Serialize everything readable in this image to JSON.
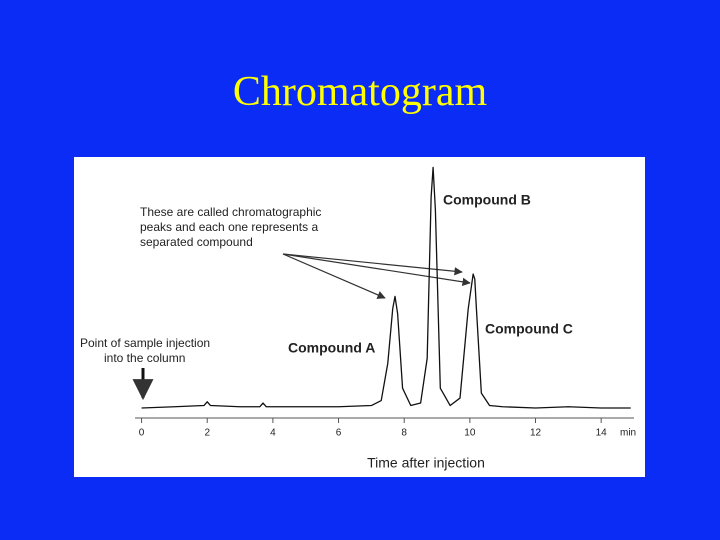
{
  "title": "Chromatogram",
  "chart_data": {
    "type": "line",
    "xlabel": "Time after injection",
    "x_unit": "min",
    "x": [
      0,
      1,
      1.9,
      2.0,
      2.1,
      3,
      3.6,
      3.7,
      3.8,
      5,
      6,
      7,
      7.3,
      7.5,
      7.65,
      7.72,
      7.8,
      7.95,
      8.2,
      8.5,
      8.7,
      8.82,
      8.88,
      8.95,
      9.1,
      9.4,
      9.7,
      9.95,
      10.1,
      10.15,
      10.2,
      10.35,
      10.6,
      11,
      12,
      13,
      14,
      14.9
    ],
    "values": [
      0,
      0.5,
      1,
      2.5,
      1,
      0.5,
      0.5,
      2,
      0.5,
      0.5,
      0.5,
      1,
      3,
      18,
      40,
      45,
      38,
      8,
      1,
      2,
      20,
      85,
      97,
      80,
      8,
      1,
      4,
      40,
      54,
      52,
      40,
      6,
      1,
      0.5,
      0,
      0.5,
      0,
      0
    ],
    "color": "#111111",
    "xlim": [
      -0.2,
      15
    ],
    "ylim": [
      0,
      100
    ],
    "xticks": [
      0,
      2,
      4,
      6,
      8,
      10,
      12,
      14
    ],
    "peak_labels": [
      "Compound A",
      "Compound B",
      "Compound C"
    ],
    "peaks_note": [
      "These are called chromatographic",
      "peaks and each one represents a",
      "separated compound"
    ],
    "injection_note": [
      "Point of sample injection",
      "into the column"
    ]
  }
}
